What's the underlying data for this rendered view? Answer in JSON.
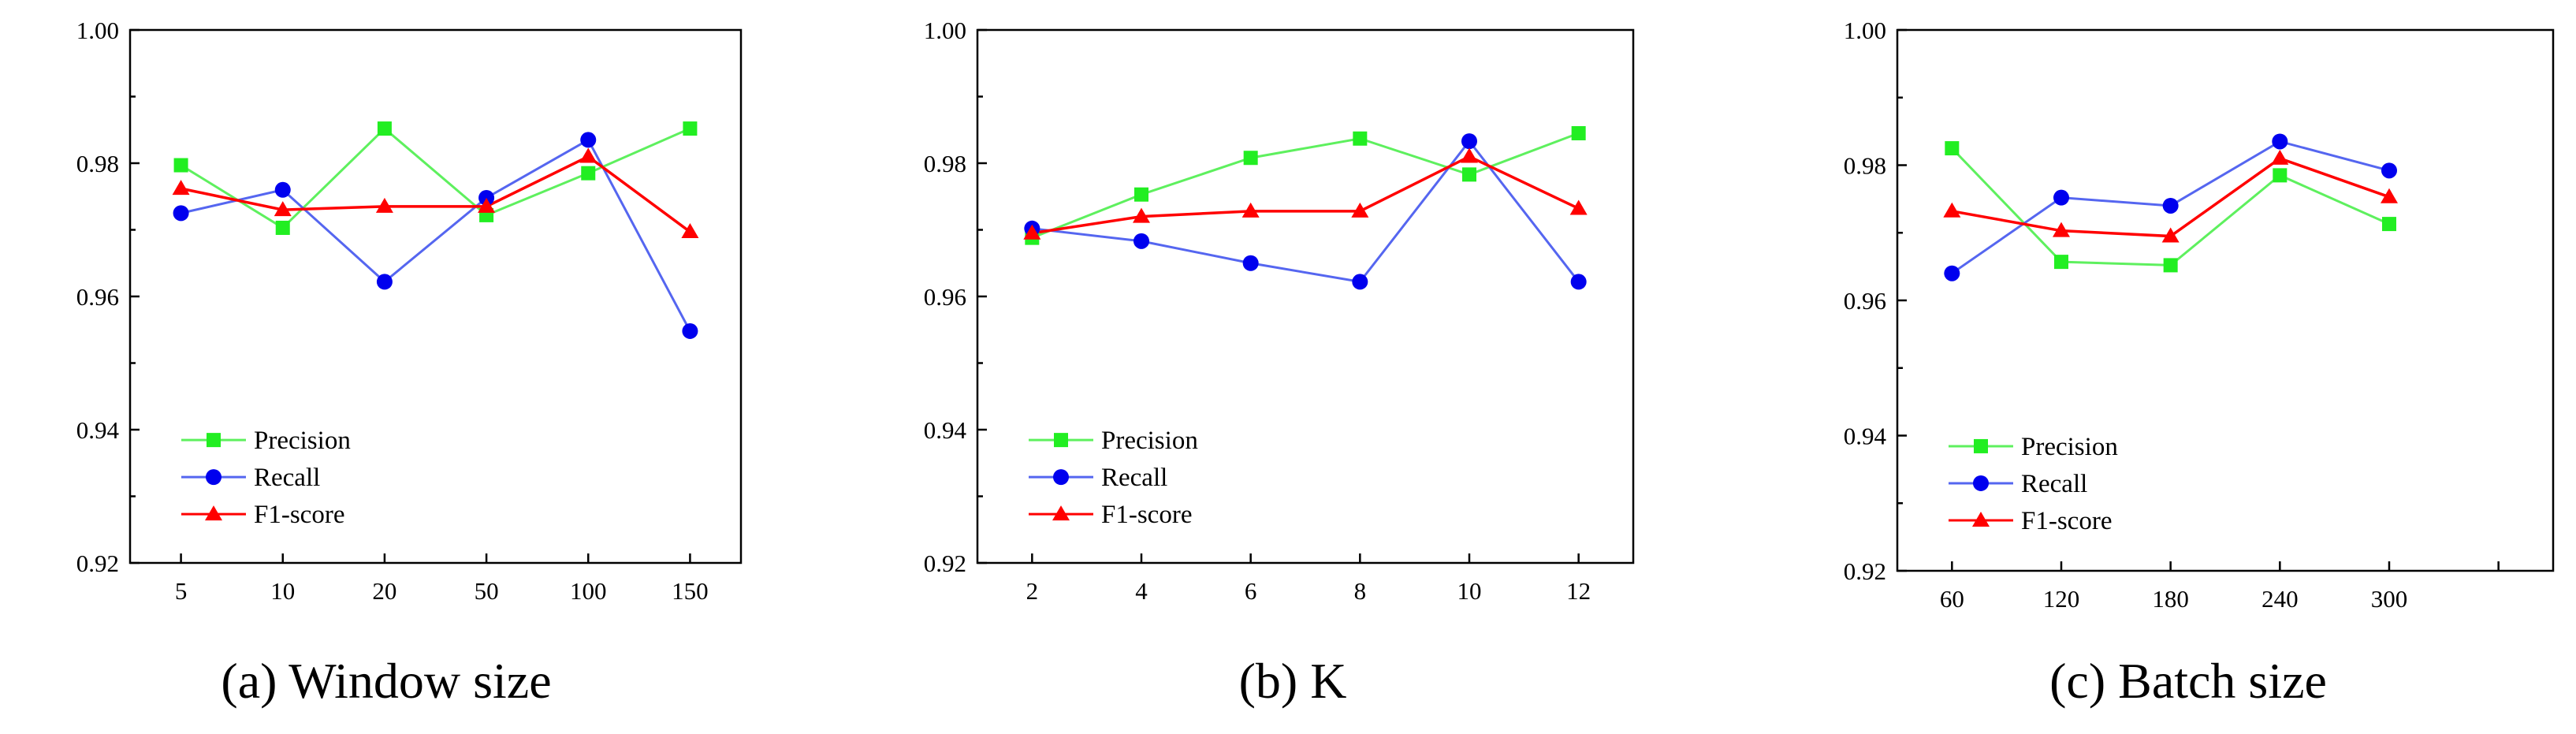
{
  "colors": {
    "precision": "#5ef05e",
    "precision_marker": "#22ee22",
    "recall": "#5566f0",
    "recall_marker": "#0000ee",
    "f1": "#ff0000"
  },
  "chart_data": [
    {
      "type": "line",
      "caption": "(a) Window size",
      "xlabel": "Window size",
      "ylabel": "",
      "ylim": [
        0.92,
        1.0
      ],
      "yticks": [
        "0.92",
        "0.94",
        "0.96",
        "0.98",
        "1.00"
      ],
      "categories": [
        "5",
        "10",
        "20",
        "50",
        "100",
        "150"
      ],
      "legend_position": "bottom-left",
      "series": [
        {
          "name": "Precision",
          "key": "precision",
          "marker": "square",
          "values": [
            0.9797,
            0.9703,
            0.9852,
            0.9722,
            0.9785,
            0.9852
          ]
        },
        {
          "name": "Recall",
          "key": "recall",
          "marker": "circle",
          "values": [
            0.9725,
            0.976,
            0.9622,
            0.9748,
            0.9835,
            0.9548
          ]
        },
        {
          "name": "F1-score",
          "key": "f1",
          "marker": "triangle",
          "values": [
            0.9762,
            0.973,
            0.9735,
            0.9735,
            0.981,
            0.9697
          ]
        }
      ]
    },
    {
      "type": "line",
      "caption": "(b) K",
      "xlabel": "K",
      "ylabel": "",
      "ylim": [
        0.92,
        1.0
      ],
      "yticks": [
        "0.92",
        "0.94",
        "0.96",
        "0.98",
        "1.00"
      ],
      "categories": [
        "2",
        "4",
        "6",
        "8",
        "10",
        "12"
      ],
      "legend_position": "bottom-left",
      "series": [
        {
          "name": "Precision",
          "key": "precision",
          "marker": "square",
          "values": [
            0.9688,
            0.9753,
            0.9808,
            0.9837,
            0.9783,
            0.9845
          ]
        },
        {
          "name": "Recall",
          "key": "recall",
          "marker": "circle",
          "values": [
            0.9702,
            0.9683,
            0.965,
            0.9622,
            0.9833,
            0.9622
          ]
        },
        {
          "name": "F1-score",
          "key": "f1",
          "marker": "triangle",
          "values": [
            0.9695,
            0.972,
            0.9728,
            0.9728,
            0.981,
            0.9732
          ]
        }
      ]
    },
    {
      "type": "line",
      "caption": "(c) Batch size",
      "xlabel": "Batch size",
      "ylabel": "",
      "ylim": [
        0.92,
        1.0
      ],
      "yticks": [
        "0.92",
        "0.94",
        "0.96",
        "0.98",
        "1.00"
      ],
      "categories": [
        "60",
        "120",
        "180",
        "240",
        "300",
        ""
      ],
      "legend_position": "bottom-left",
      "series": [
        {
          "name": "Precision",
          "key": "precision",
          "marker": "square",
          "values": [
            0.9825,
            0.9657,
            0.9652,
            0.9785,
            0.9713,
            null
          ]
        },
        {
          "name": "Recall",
          "key": "recall",
          "marker": "circle",
          "values": [
            0.964,
            0.9752,
            0.974,
            0.9835,
            0.9792,
            null
          ]
        },
        {
          "name": "F1-score",
          "key": "f1",
          "marker": "triangle",
          "values": [
            0.9732,
            0.9703,
            0.9695,
            0.981,
            0.9753,
            null
          ]
        }
      ]
    }
  ]
}
